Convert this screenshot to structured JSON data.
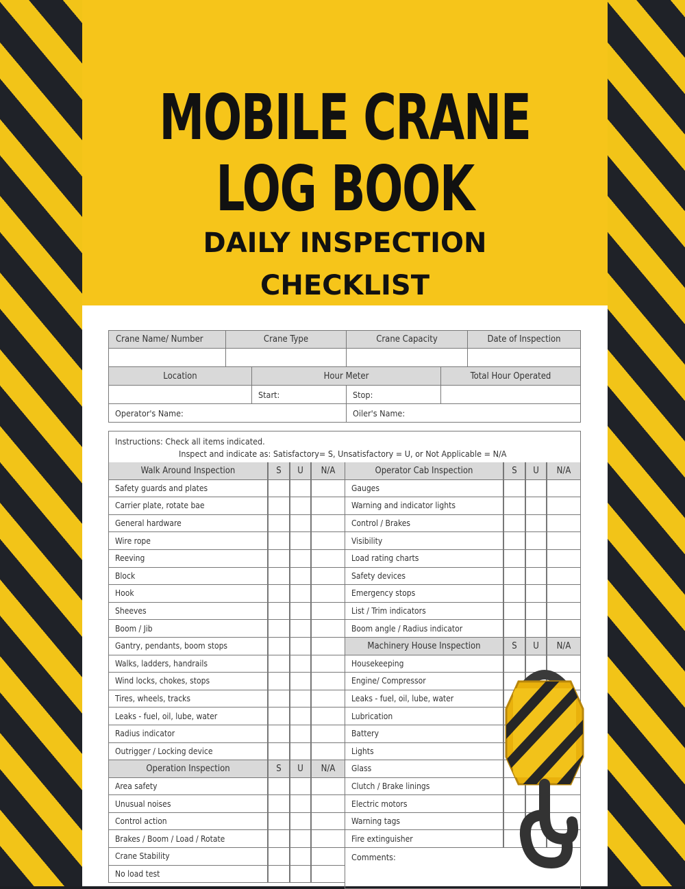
{
  "cover": {
    "title_line1": "MOBILE CRANE",
    "title_line2": "LOG BOOK",
    "subtitle_line1": "DAILY INSPECTION",
    "subtitle_line2": "CHECKLIST"
  },
  "colors": {
    "yellow": "#f6c51a",
    "black": "#1f2228"
  },
  "header_form": {
    "crane_name": "Crane Name/ Number",
    "crane_type": "Crane Type",
    "crane_capacity": "Crane Capacity",
    "date": "Date of Inspection",
    "location": "Location",
    "hour_meter": "Hour Meter",
    "total_hours": "Total Hour Operated",
    "start": "Start:",
    "stop": "Stop:",
    "operator": "Operator's Name:",
    "oiler": "Oiler's Name:"
  },
  "instructions": {
    "line1": "Instructions: Check all items indicated.",
    "line2": "Inspect and indicate as: Satisfactory= S, Unsatisfactory = U, or Not Applicable = N/A"
  },
  "marks": [
    "S",
    "U",
    "N/A"
  ],
  "left": [
    {
      "title": "Walk Around Inspection",
      "items": [
        "Safety guards and plates",
        "Carrier plate, rotate bae",
        "General hardware",
        "Wire rope",
        "Reeving",
        "Block",
        "Hook",
        "Sheeves",
        "Boom / Jib",
        "Gantry, pendants, boom stops",
        "Walks, ladders, handrails",
        "Wind locks, chokes, stops",
        "Tires, wheels, tracks",
        "Leaks - fuel, oil, lube, water",
        "Radius indicator",
        "Outrigger / Locking device"
      ]
    },
    {
      "title": "Operation Inspection",
      "items": [
        "Area safety",
        "Unusual noises",
        "Control action",
        "Brakes / Boom / Load / Rotate",
        "Crane Stability",
        "No load test"
      ]
    }
  ],
  "right": [
    {
      "title": "Operator Cab Inspection",
      "items": [
        "Gauges",
        "Warning and indicator lights",
        "Control / Brakes",
        "Visibility",
        "Load rating charts",
        "Safety devices",
        "Emergency stops",
        "List / Trim indicators",
        "Boom angle / Radius indicator"
      ]
    },
    {
      "title": "Machinery House Inspection",
      "items": [
        "Housekeeping",
        "Engine/ Compressor",
        "Leaks - fuel, oil, lube, water",
        "Lubrication",
        "Battery",
        "Lights",
        "Glass",
        "Clutch / Brake linings",
        "Electric motors",
        "Warning tags",
        "Fire extinguisher"
      ]
    }
  ],
  "comments": "Comments:",
  "decoration": {
    "icon": "crane-hook-icon"
  }
}
